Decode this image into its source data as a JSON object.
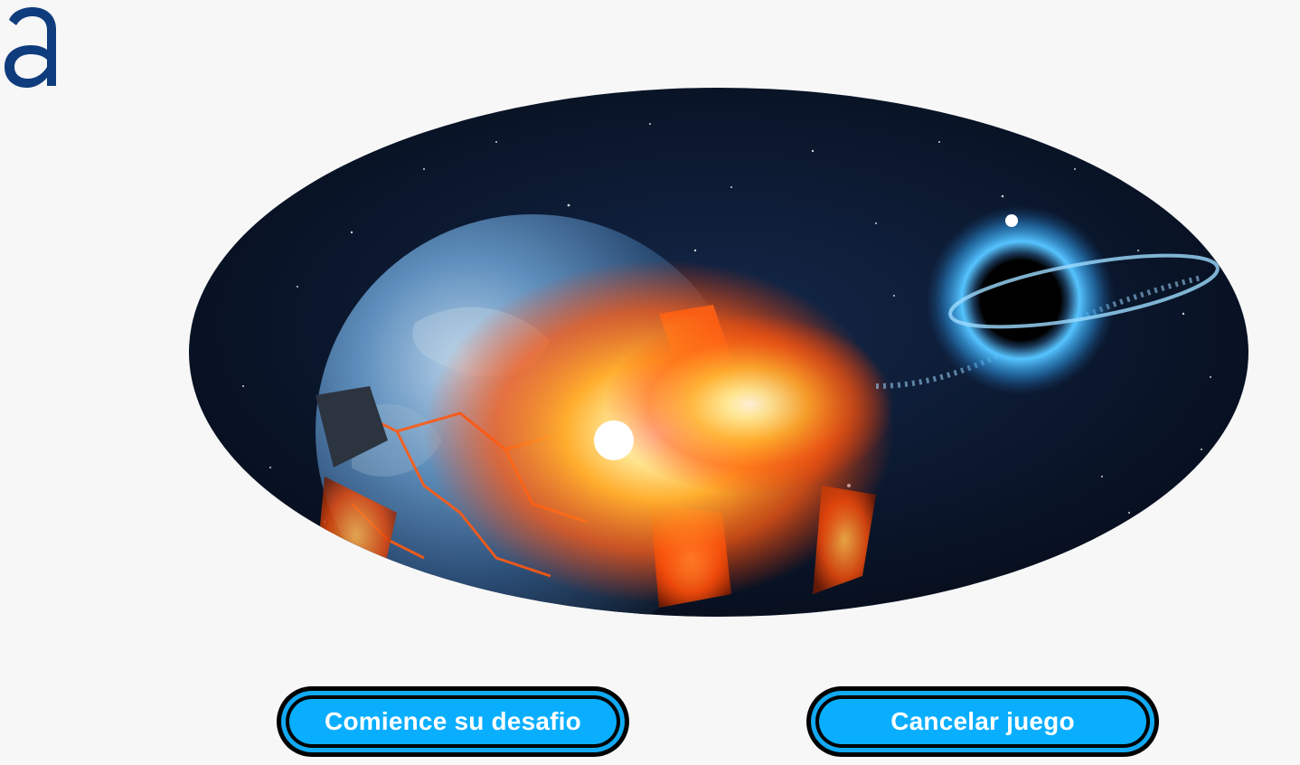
{
  "brand": {
    "logo_icon": "letter-a-logo-icon",
    "logo_color": "#0f3c7d"
  },
  "hero": {
    "image_description_icon": "earth-destroyed-by-black-hole-illustration",
    "palette": {
      "space": "#0a1426",
      "planet_blue": "#4f86b8",
      "lava": "#ff6a13",
      "black_hole_glow": "#4fc3ff"
    }
  },
  "actions": {
    "start_label": "Comience su desafio",
    "cancel_label": "Cancelar juego",
    "button_color": "#0aaeff",
    "button_text_color": "#ffffff"
  }
}
